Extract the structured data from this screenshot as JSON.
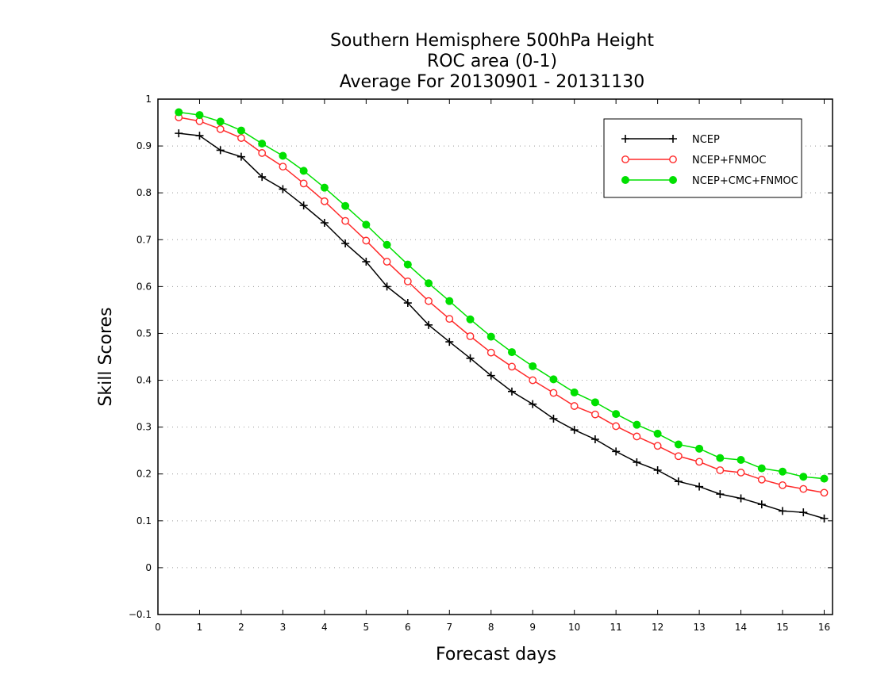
{
  "chart_data": {
    "type": "line",
    "title_lines": [
      "Southern Hemisphere 500hPa Height",
      "ROC area (0-1)",
      "Average For 20130901 - 20131130"
    ],
    "xlabel": "Forecast days",
    "ylabel": "Skill Scores",
    "xlim": [
      0,
      16.2
    ],
    "ylim": [
      -0.1,
      1
    ],
    "xticks": [
      "0",
      "1",
      "2",
      "3",
      "4",
      "5",
      "6",
      "7",
      "8",
      "9",
      "10",
      "11",
      "12",
      "13",
      "14",
      "15",
      "16"
    ],
    "yticks": [
      "−0.1",
      "0",
      "0.1",
      "0.2",
      "0.3",
      "0.4",
      "0.5",
      "0.6",
      "0.7",
      "0.8",
      "0.9",
      "1"
    ],
    "grid": true,
    "legend_position": "top-right",
    "x": [
      0.5,
      1,
      1.5,
      2,
      2.5,
      3,
      3.5,
      4,
      4.5,
      5,
      5.5,
      6,
      6.5,
      7,
      7.5,
      8,
      8.5,
      9,
      9.5,
      10,
      10.5,
      11,
      11.5,
      12,
      12.5,
      13,
      13.5,
      14,
      14.5,
      15,
      15.5,
      16
    ],
    "series": [
      {
        "name": "NCEP",
        "color": "#000000",
        "marker": "plus",
        "values": [
          0.927,
          0.922,
          0.891,
          0.877,
          0.834,
          0.808,
          0.773,
          0.736,
          0.692,
          0.653,
          0.6,
          0.565,
          0.518,
          0.482,
          0.447,
          0.41,
          0.376,
          0.349,
          0.318,
          0.294,
          0.274,
          0.248,
          0.225,
          0.208,
          0.184,
          0.173,
          0.157,
          0.148,
          0.135,
          0.121,
          0.118,
          0.105
        ]
      },
      {
        "name": "NCEP+FNMOC",
        "color": "#ff2a2a",
        "marker": "open-circle",
        "values": [
          0.961,
          0.953,
          0.936,
          0.917,
          0.885,
          0.856,
          0.82,
          0.782,
          0.74,
          0.698,
          0.653,
          0.611,
          0.569,
          0.531,
          0.494,
          0.459,
          0.429,
          0.4,
          0.373,
          0.345,
          0.327,
          0.302,
          0.28,
          0.26,
          0.238,
          0.226,
          0.208,
          0.203,
          0.188,
          0.176,
          0.168,
          0.16
        ]
      },
      {
        "name": "NCEP+CMC+FNMOC",
        "color": "#00e000",
        "marker": "filled-circle",
        "values": [
          0.972,
          0.966,
          0.952,
          0.933,
          0.905,
          0.879,
          0.847,
          0.811,
          0.772,
          0.732,
          0.689,
          0.647,
          0.607,
          0.569,
          0.53,
          0.493,
          0.46,
          0.43,
          0.402,
          0.374,
          0.353,
          0.328,
          0.305,
          0.286,
          0.263,
          0.254,
          0.234,
          0.23,
          0.212,
          0.205,
          0.194,
          0.19
        ]
      }
    ]
  }
}
